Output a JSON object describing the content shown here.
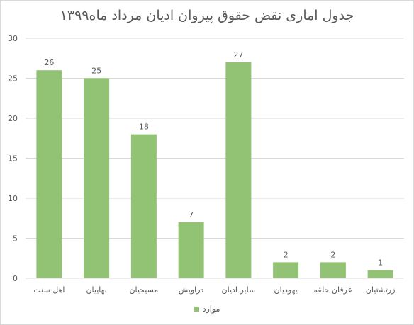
{
  "chart_data": {
    "type": "bar",
    "title": "جدول اماری نقض حقوق پیروان ادیان مرداد ماه۱۳۹۹",
    "categories": [
      "اهل سنت",
      "بهاییان",
      "مسیحیان",
      "دراویش",
      "سایر ادیان",
      "یهودیان",
      "عرفان حلقه",
      "زرتشتیان"
    ],
    "series": [
      {
        "name": "موارد",
        "values": [
          26,
          25,
          18,
          7,
          27,
          2,
          2,
          1
        ]
      }
    ],
    "xlabel": "",
    "ylabel": "",
    "ylim": [
      0,
      30
    ],
    "yticks": [
      0,
      5,
      10,
      15,
      20,
      25,
      30
    ],
    "grid": true,
    "data_labels": true,
    "legend_position": "bottom",
    "bar_color": "#92c274",
    "grid_color": "#d9d9d9",
    "text_color": "#595959"
  }
}
